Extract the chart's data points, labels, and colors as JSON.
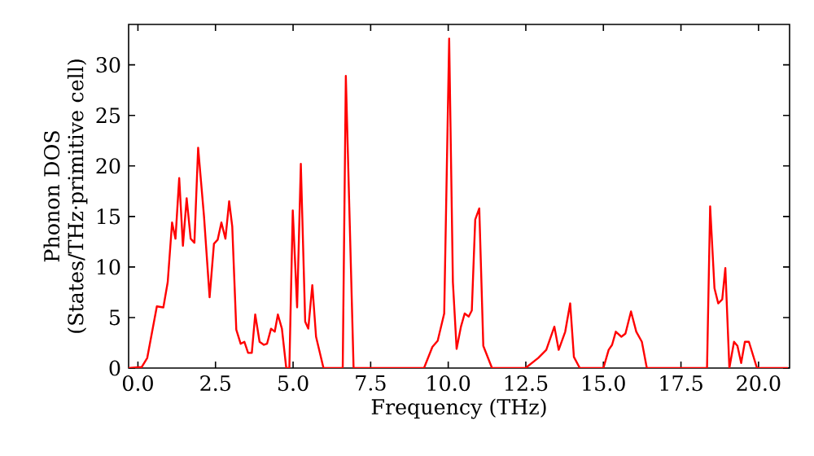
{
  "chart_data": {
    "type": "line",
    "xlabel": "Frequency (THz)",
    "ylabel": "Phonon DOS (States/THz·primitive cell)",
    "xlim": [
      -0.3,
      21
    ],
    "ylim": [
      0,
      34
    ],
    "xticks": [
      {
        "value": 0,
        "label": "0.0"
      },
      {
        "value": 2.5,
        "label": "2.5"
      },
      {
        "value": 5,
        "label": "5.0"
      },
      {
        "value": 7.5,
        "label": "7.5"
      },
      {
        "value": 10,
        "label": "10.0"
      },
      {
        "value": 12.5,
        "label": "12.5"
      },
      {
        "value": 15,
        "label": "15.0"
      },
      {
        "value": 17.5,
        "label": "17.5"
      },
      {
        "value": 20,
        "label": "20.0"
      }
    ],
    "yticks": [
      0,
      5,
      10,
      15,
      20,
      25,
      30
    ],
    "grid": false,
    "marker": "none",
    "line_style": "solid",
    "series": [
      {
        "color": "#ff0000",
        "x": [
          -0.3,
          0.12,
          0.3,
          0.61,
          0.82,
          0.96,
          1.1,
          1.21,
          1.33,
          1.45,
          1.57,
          1.7,
          1.82,
          1.94,
          2.13,
          2.31,
          2.45,
          2.57,
          2.69,
          2.82,
          2.94,
          3.04,
          3.17,
          3.31,
          3.43,
          3.55,
          3.67,
          3.78,
          3.92,
          4.06,
          4.16,
          4.29,
          4.41,
          4.51,
          4.64,
          4.78,
          4.88,
          4.99,
          5.13,
          5.25,
          5.39,
          5.49,
          5.62,
          5.74,
          5.98,
          6.6,
          6.7,
          6.95,
          9.22,
          9.49,
          9.66,
          9.87,
          10.03,
          10.15,
          10.27,
          10.41,
          10.53,
          10.66,
          10.76,
          10.87,
          11.0,
          11.13,
          11.41,
          12.49,
          12.9,
          13.16,
          13.42,
          13.56,
          13.77,
          13.93,
          14.05,
          14.24,
          15.0,
          15.17,
          15.28,
          15.4,
          15.58,
          15.71,
          15.89,
          16.06,
          16.24,
          16.4,
          18.34,
          18.44,
          18.58,
          18.7,
          18.83,
          18.93,
          19.06,
          19.21,
          19.32,
          19.44,
          19.56,
          19.69,
          19.95,
          20.95
        ],
        "values": [
          0,
          0.1,
          1,
          6.1,
          6.0,
          8.5,
          14.4,
          12.8,
          18.8,
          12.1,
          16.8,
          12.8,
          12.4,
          21.8,
          15,
          7.0,
          12.3,
          12.7,
          14.4,
          12.8,
          16.5,
          14,
          3.8,
          2.4,
          2.6,
          1.5,
          1.5,
          5.3,
          2.6,
          2.3,
          2.4,
          3.9,
          3.6,
          5.3,
          3.9,
          0,
          0,
          15.6,
          6.0,
          20.2,
          4.6,
          3.9,
          8.2,
          3.1,
          0,
          0,
          28.9,
          0,
          0,
          2.1,
          2.7,
          5.4,
          32.6,
          8.5,
          1.9,
          4.1,
          5.4,
          5.1,
          5.7,
          14.7,
          15.8,
          2.2,
          0,
          0,
          1.0,
          1.8,
          4.1,
          1.8,
          3.6,
          6.4,
          1.1,
          0,
          0,
          1.8,
          2.3,
          3.6,
          3.1,
          3.4,
          5.6,
          3.6,
          2.6,
          0,
          0,
          16,
          7.9,
          6.4,
          6.8,
          9.9,
          0,
          2.6,
          2.2,
          0.5,
          2.6,
          2.6,
          0,
          0
        ]
      }
    ]
  }
}
